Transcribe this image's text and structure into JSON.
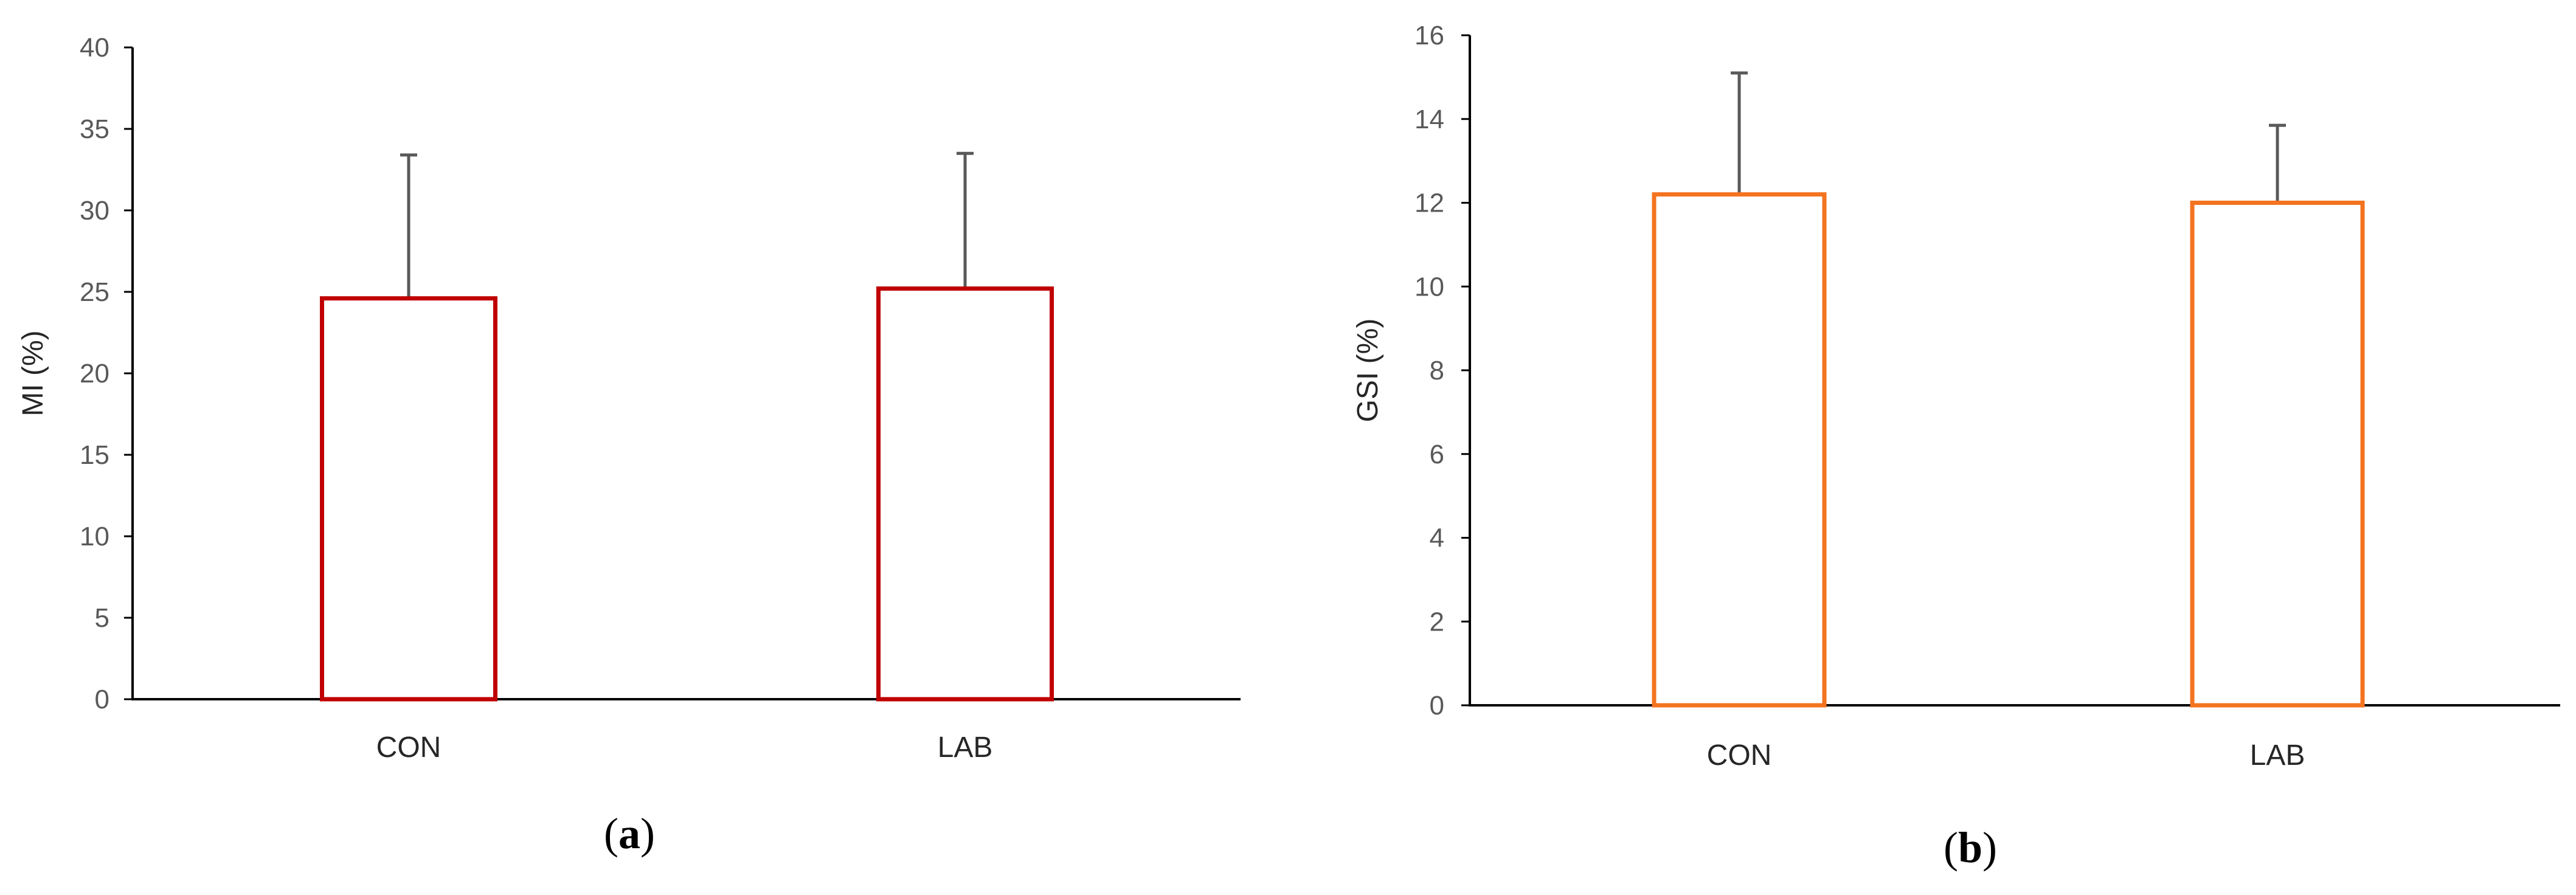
{
  "chart_data": [
    {
      "type": "bar",
      "panel_label": "a",
      "ylabel": "MI (%)",
      "xlabel": "",
      "ylim": [
        0,
        40
      ],
      "yticks": [
        0,
        5,
        10,
        15,
        20,
        25,
        30,
        35,
        40
      ],
      "categories": [
        "CON",
        "LAB"
      ],
      "values": [
        24.6,
        25.2
      ],
      "error_plus": [
        8.8,
        8.3
      ],
      "bar_style": "outline",
      "color": "#C00000",
      "grid": false,
      "legend": "none"
    },
    {
      "type": "bar",
      "panel_label": "b",
      "ylabel": "GSI (%)",
      "xlabel": "",
      "ylim": [
        0,
        16
      ],
      "yticks": [
        0,
        2,
        4,
        6,
        8,
        10,
        12,
        14,
        16
      ],
      "categories": [
        "CON",
        "LAB"
      ],
      "values": [
        12.2,
        12.0
      ],
      "error_plus": [
        2.9,
        1.85
      ],
      "bar_style": "outline",
      "color": "#F4731F",
      "grid": false,
      "legend": "none"
    }
  ]
}
